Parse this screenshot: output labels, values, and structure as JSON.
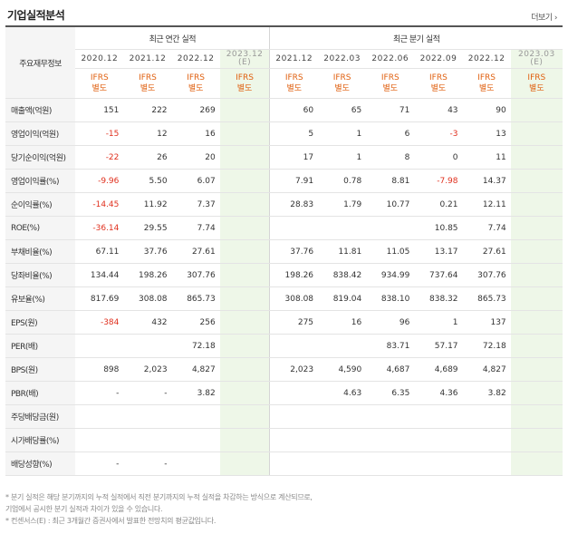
{
  "header": {
    "title": "기업실적분석",
    "more": "더보기 ›"
  },
  "table": {
    "label_header": "주요재무정보",
    "group_annual": "최근 연간 실적",
    "group_quarter": "최근 분기 실적",
    "periods": [
      "2020.12",
      "2021.12",
      "2022.12",
      "2023.12\n(E)",
      "2021.12",
      "2022.03",
      "2022.06",
      "2022.09",
      "2022.12",
      "2023.03\n(E)"
    ],
    "ifrs": "IFRS\n별도",
    "rows": [
      {
        "label": "매출액(억원)",
        "values": [
          "151",
          "222",
          "269",
          "",
          "60",
          "65",
          "71",
          "43",
          "90",
          ""
        ]
      },
      {
        "label": "영업이익(억원)",
        "values": [
          "-15",
          "12",
          "16",
          "",
          "5",
          "1",
          "6",
          "-3",
          "13",
          ""
        ]
      },
      {
        "label": "당기순이익(억원)",
        "values": [
          "-22",
          "26",
          "20",
          "",
          "17",
          "1",
          "8",
          "0",
          "11",
          ""
        ]
      },
      {
        "label": "영업이익률(%)",
        "values": [
          "-9.96",
          "5.50",
          "6.07",
          "",
          "7.91",
          "0.78",
          "8.81",
          "-7.98",
          "14.37",
          ""
        ]
      },
      {
        "label": "순이익률(%)",
        "values": [
          "-14.45",
          "11.92",
          "7.37",
          "",
          "28.83",
          "1.79",
          "10.77",
          "0.21",
          "12.11",
          ""
        ]
      },
      {
        "label": "ROE(%)",
        "values": [
          "-36.14",
          "29.55",
          "7.74",
          "",
          "",
          "",
          "",
          "10.85",
          "7.74",
          ""
        ]
      },
      {
        "label": "부채비율(%)",
        "values": [
          "67.11",
          "37.76",
          "27.61",
          "",
          "37.76",
          "11.81",
          "11.05",
          "13.17",
          "27.61",
          ""
        ]
      },
      {
        "label": "당좌비율(%)",
        "values": [
          "134.44",
          "198.26",
          "307.76",
          "",
          "198.26",
          "838.42",
          "934.99",
          "737.64",
          "307.76",
          ""
        ]
      },
      {
        "label": "유보율(%)",
        "values": [
          "817.69",
          "308.08",
          "865.73",
          "",
          "308.08",
          "819.04",
          "838.10",
          "838.32",
          "865.73",
          ""
        ]
      },
      {
        "label": "EPS(원)",
        "values": [
          "-384",
          "432",
          "256",
          "",
          "275",
          "16",
          "96",
          "1",
          "137",
          ""
        ]
      },
      {
        "label": "PER(배)",
        "values": [
          "",
          "",
          "72.18",
          "",
          "",
          "",
          "83.71",
          "57.17",
          "72.18",
          ""
        ]
      },
      {
        "label": "BPS(원)",
        "values": [
          "898",
          "2,023",
          "4,827",
          "",
          "2,023",
          "4,590",
          "4,687",
          "4,689",
          "4,827",
          ""
        ]
      },
      {
        "label": "PBR(배)",
        "values": [
          "-",
          "-",
          "3.82",
          "",
          "",
          "4.63",
          "6.35",
          "4.36",
          "3.82",
          ""
        ]
      },
      {
        "label": "주당배당금(원)",
        "values": [
          "",
          "",
          "",
          "",
          "",
          "",
          "",
          "",
          "",
          ""
        ]
      },
      {
        "label": "시가배당률(%)",
        "values": [
          "",
          "",
          "",
          "",
          "",
          "",
          "",
          "",
          "",
          ""
        ]
      },
      {
        "label": "배당성향(%)",
        "values": [
          "-",
          "-",
          "",
          "",
          "",
          "",
          "",
          "",
          "",
          ""
        ]
      }
    ]
  },
  "notes": [
    "* 분기 실적은 해당 분기까지의 누적 실적에서 직전 분기까지의 누적 실적을 차감하는 방식으로 계산되므로,",
    "  기업에서 공시한 분기 실적과 차이가 있을 수 있습니다.",
    "* 컨센서스(E) : 최근 3개월간 증권사에서 발표한 전망치의 평균값입니다."
  ],
  "colors": {
    "negative": "#e0301e",
    "ifrs": "#e06010",
    "estimate_bg": "#eef7e8"
  }
}
